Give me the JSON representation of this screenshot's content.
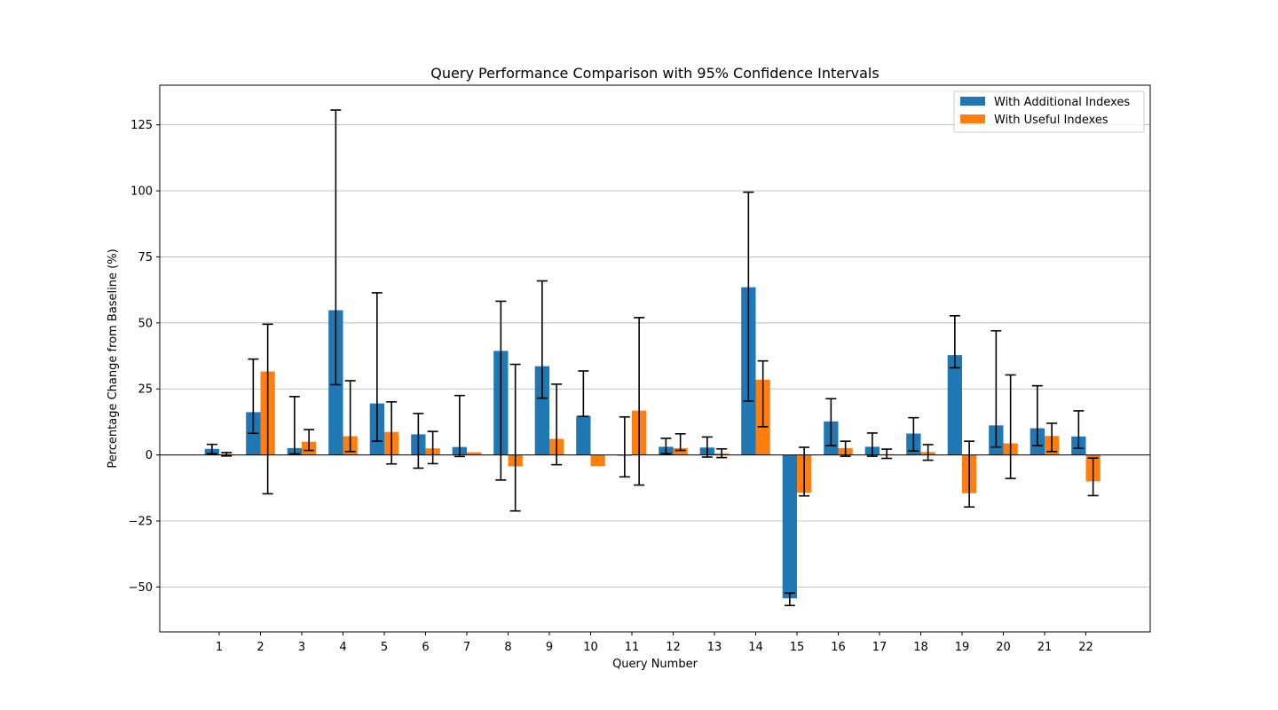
{
  "chart_data": {
    "type": "bar",
    "title": "Query Performance Comparison with 95% Confidence Intervals",
    "xlabel": "Query Number",
    "ylabel": "Percentage Change from Baseline (%)",
    "categories": [
      "1",
      "2",
      "3",
      "4",
      "5",
      "6",
      "7",
      "8",
      "9",
      "10",
      "11",
      "12",
      "13",
      "14",
      "15",
      "16",
      "17",
      "18",
      "19",
      "20",
      "21",
      "22"
    ],
    "ylim": [
      -67,
      140
    ],
    "yticks": [
      -50,
      -25,
      0,
      25,
      50,
      75,
      100,
      125
    ],
    "ytick_labels": [
      "−50",
      "−25",
      "0",
      "25",
      "50",
      "75",
      "100",
      "125"
    ],
    "grid": "horizontal",
    "legend_position": "top-right",
    "series": [
      {
        "name": "With Additional Indexes",
        "color": "#1f77b4",
        "values": [
          2.3,
          16.2,
          2.6,
          54.8,
          19.5,
          7.8,
          3.0,
          39.4,
          33.6,
          14.8,
          -0.3,
          3.1,
          2.8,
          63.5,
          -54.3,
          12.7,
          3.1,
          8.1,
          37.8,
          11.2,
          10.1,
          7.0
        ],
        "ci_low": [
          0.5,
          8.2,
          0.4,
          26.6,
          5.2,
          -5.0,
          -0.6,
          -9.5,
          21.5,
          14.6,
          -8.3,
          0.5,
          -0.8,
          20.4,
          -57.0,
          3.5,
          -0.5,
          1.5,
          33.0,
          3.0,
          3.5,
          2.5
        ],
        "ci_high": [
          4.0,
          36.3,
          22.1,
          130.6,
          61.4,
          15.7,
          22.5,
          58.2,
          65.9,
          31.8,
          14.4,
          6.3,
          6.8,
          99.5,
          -52.3,
          21.3,
          8.3,
          14.1,
          52.7,
          47.0,
          26.2,
          16.7
        ]
      },
      {
        "name": "With Useful Indexes",
        "color": "#ff7f0e",
        "values": [
          0.3,
          31.6,
          5.0,
          7.1,
          8.7,
          2.5,
          1.0,
          -4.3,
          6.1,
          -4.2,
          16.8,
          2.6,
          0.6,
          28.5,
          -14.3,
          2.6,
          0.3,
          1.1,
          -14.5,
          4.4,
          7.2,
          -10.0
        ],
        "ci_low": [
          -0.4,
          -14.7,
          1.7,
          1.3,
          -3.4,
          -3.3,
          null,
          -21.2,
          -3.7,
          null,
          -11.4,
          1.7,
          -1.0,
          10.7,
          -15.5,
          -0.5,
          -1.3,
          -2.0,
          -19.7,
          -8.9,
          1.3,
          -15.4
        ],
        "ci_high": [
          0.9,
          49.5,
          9.6,
          28.1,
          20.1,
          8.9,
          null,
          34.3,
          26.8,
          null,
          52.0,
          8.0,
          2.3,
          35.6,
          2.9,
          5.2,
          2.2,
          3.9,
          5.2,
          30.3,
          12.0,
          -1.2
        ]
      }
    ]
  }
}
